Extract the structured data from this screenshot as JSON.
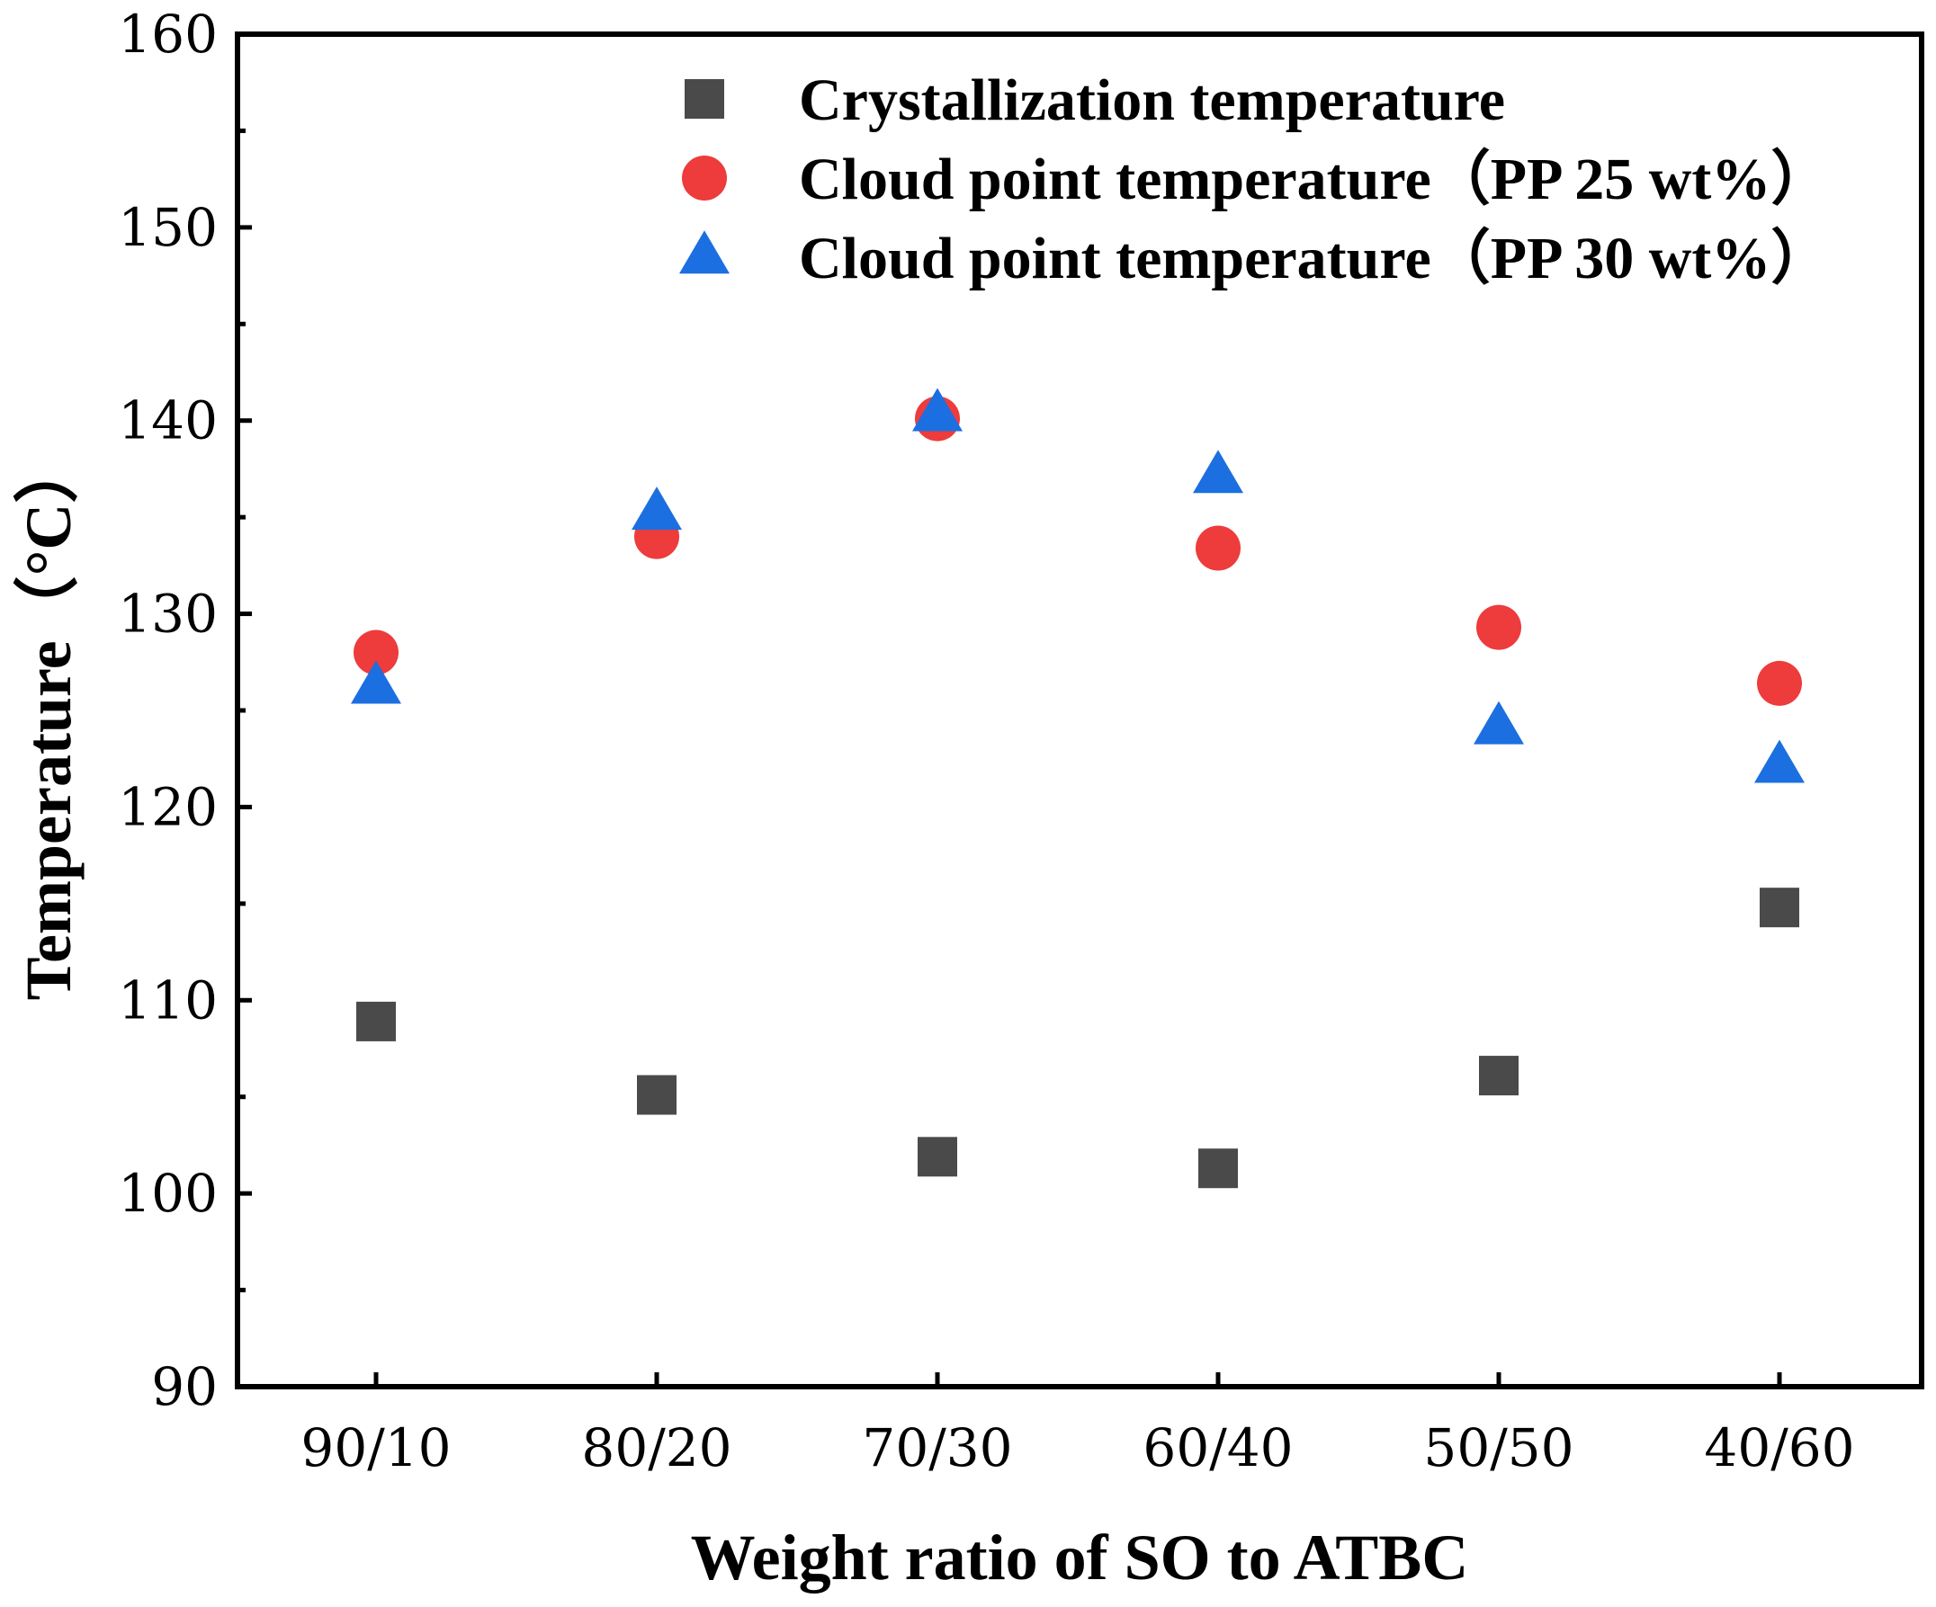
{
  "chart_data": {
    "type": "scatter",
    "title": "",
    "xlabel": "Weight ratio of SO to ATBC",
    "ylabel": "Temperature（°C）",
    "categories": [
      "90/10",
      "80/20",
      "70/30",
      "60/40",
      "50/50",
      "40/60"
    ],
    "ylim": [
      90,
      160
    ],
    "yticks": [
      90,
      100,
      110,
      120,
      130,
      140,
      150,
      160
    ],
    "grid": false,
    "legend_position": "top-right",
    "series": [
      {
        "name": "Crystallization temperature",
        "marker": "square",
        "color": "#4a4a4a",
        "values": [
          108.9,
          105.1,
          101.9,
          101.3,
          106.1,
          114.8
        ]
      },
      {
        "name": "Cloud point temperature（PP 25 wt%）",
        "marker": "circle",
        "color": "#ee3b3b",
        "values": [
          128.0,
          134.0,
          140.1,
          133.4,
          129.3,
          126.4
        ]
      },
      {
        "name": "Cloud point temperature（PP 30 wt%）",
        "marker": "triangle",
        "color": "#1c6fe0",
        "values": [
          126.2,
          135.2,
          140.3,
          137.1,
          124.1,
          122.1
        ]
      }
    ]
  }
}
